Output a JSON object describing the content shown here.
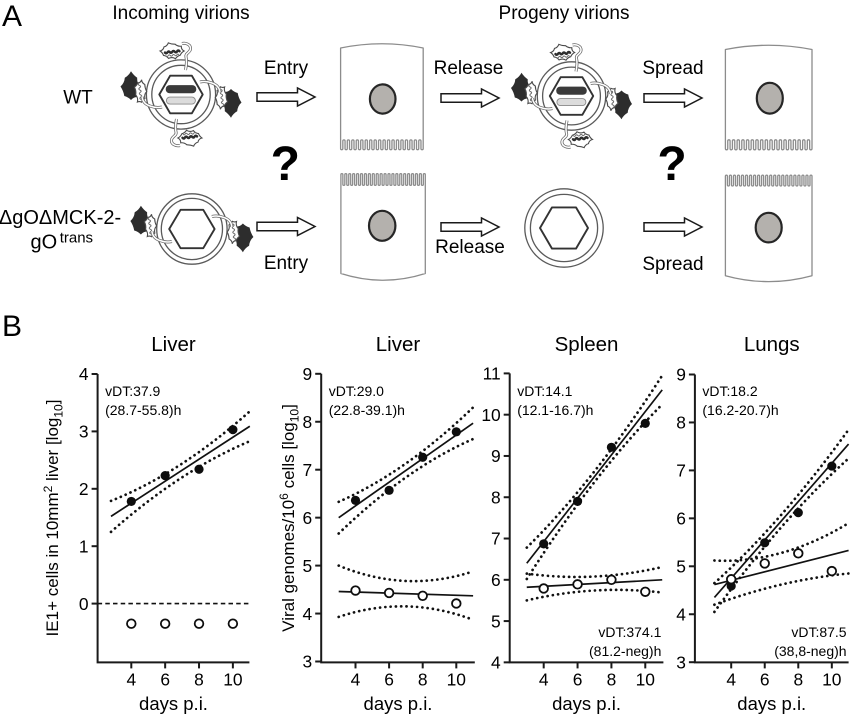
{
  "figure": {
    "panel_a_label": "A",
    "panel_b_label": "B"
  },
  "panel_a": {
    "heading_incoming": "Incoming virions",
    "heading_progeny": "Progeny virions",
    "rows": [
      {
        "label": "WT",
        "entry": "Entry",
        "release": "Release",
        "spread": "Spread"
      },
      {
        "label_line1": "ΔgOΔMCK-2-",
        "label_line2_base": "gO",
        "label_line2_sup": "trans",
        "entry": "Entry",
        "release": "Release",
        "spread": "Spread"
      }
    ],
    "question_marks": [
      "?",
      "?"
    ]
  },
  "colors": {
    "ink": "#000000",
    "axis": "#1a1a1a",
    "membrane_gray": "#8c8c8c",
    "nucleus_fill": "#b4b1ad",
    "virion_outline": "#5a5a5a",
    "capsid_dark_bar": "#3a3a3a",
    "capsid_light_bar": "#dcdcdc",
    "spike_dark": "#2d2d2d"
  },
  "chart_data": [
    {
      "type": "scatter",
      "title": "Liver",
      "xlabel": "days p.i.",
      "ylabel_parts": {
        "t1": "IE1+ cells in 10mm",
        "sup": "2",
        "t2": " liver [log",
        "sub": "10",
        "t3": "]"
      },
      "x_ticks": [
        "4",
        "6",
        "8",
        "10"
      ],
      "y_ticks": [
        "4",
        "3",
        "2",
        "1",
        "0"
      ],
      "xlim": [
        2,
        11
      ],
      "ylim": [
        -1.02,
        4
      ],
      "annotation_top": {
        "line1": "vDT:37.9",
        "line2": "(28.7-55.8)h"
      },
      "annotation_bottom": null,
      "zero_dashed_line": 0,
      "series": [
        {
          "name": "filled-circles",
          "marker": "filled",
          "x": [
            4,
            6,
            8,
            10
          ],
          "y": [
            1.78,
            2.23,
            2.34,
            3.03
          ],
          "fit_line": {
            "x": [
              2.8,
              11
            ],
            "y": [
              1.52,
              3.09
            ]
          },
          "band_upper": [
            [
              2.8,
              1.79
            ],
            [
              6.9,
              2.42
            ],
            [
              11,
              3.35
            ]
          ],
          "band_lower": [
            [
              2.8,
              1.25
            ],
            [
              6.9,
              2.18
            ],
            [
              11,
              2.83
            ]
          ]
        },
        {
          "name": "open-circles",
          "marker": "open",
          "x": [
            4,
            6,
            8,
            10
          ],
          "y": [
            -0.35,
            -0.35,
            -0.35,
            -0.35
          ],
          "fit_line": null,
          "band_upper": null,
          "band_lower": null
        }
      ]
    },
    {
      "type": "scatter",
      "title": "Liver",
      "xlabel": "days p.i.",
      "ylabel_parts": {
        "t1": "Viral genomes/10",
        "sup": "6",
        "t2": " cells [log",
        "sub": "10",
        "t3": "]"
      },
      "x_ticks": [
        "4",
        "6",
        "8",
        "10"
      ],
      "y_ticks": [
        "9",
        "8",
        "7",
        "6",
        "5",
        "4",
        "3"
      ],
      "xlim": [
        2,
        11
      ],
      "ylim": [
        3,
        9
      ],
      "annotation_top": {
        "line1": "vDT:29.0",
        "line2": "(22.8-39.1)h"
      },
      "annotation_bottom": null,
      "zero_dashed_line": null,
      "series": [
        {
          "name": "filled-circles",
          "marker": "filled",
          "x": [
            4,
            6,
            8,
            10
          ],
          "y": [
            6.36,
            6.57,
            7.26,
            7.79
          ],
          "fit_line": {
            "x": [
              3,
              11
            ],
            "y": [
              6.0,
              7.97
            ]
          },
          "band_upper": [
            [
              3,
              6.33
            ],
            [
              7,
              7.13
            ],
            [
              11,
              8.3
            ]
          ],
          "band_lower": [
            [
              3,
              5.67
            ],
            [
              7,
              6.84
            ],
            [
              11,
              7.64
            ]
          ]
        },
        {
          "name": "open-circles",
          "marker": "open",
          "x": [
            4,
            6,
            8,
            10
          ],
          "y": [
            4.48,
            4.43,
            4.37,
            4.21
          ],
          "fit_line": {
            "x": [
              3,
              11
            ],
            "y": [
              4.46,
              4.37
            ]
          },
          "band_upper": [
            [
              3,
              5.0
            ],
            [
              7,
              4.68
            ],
            [
              11,
              4.88
            ]
          ],
          "band_lower": [
            [
              3,
              3.93
            ],
            [
              7,
              4.15
            ],
            [
              11,
              3.87
            ]
          ]
        }
      ]
    },
    {
      "type": "scatter",
      "title": "Spleen",
      "xlabel": "days p.i.",
      "ylabel_parts": null,
      "x_ticks": [
        "4",
        "6",
        "8",
        "10"
      ],
      "y_ticks": [
        "11",
        "10",
        "9",
        "8",
        "7",
        "6",
        "5",
        "4"
      ],
      "xlim": [
        2,
        11
      ],
      "ylim": [
        4,
        11
      ],
      "annotation_top": {
        "line1": "vDT:14.1",
        "line2": "(12.1-16.7)h"
      },
      "annotation_bottom": {
        "line1": "vDT:374.1",
        "line2": "(81.2-neg)h"
      },
      "zero_dashed_line": null,
      "series": [
        {
          "name": "filled-circles",
          "marker": "filled",
          "x": [
            4,
            6,
            8,
            10
          ],
          "y": [
            6.87,
            7.9,
            9.21,
            9.79
          ],
          "fit_line": {
            "x": [
              3,
              11
            ],
            "y": [
              6.4,
              10.6
            ]
          },
          "band_upper": [
            [
              3,
              6.78
            ],
            [
              7,
              8.63
            ],
            [
              11,
              10.95
            ]
          ],
          "band_lower": [
            [
              3,
              6.02
            ],
            [
              7,
              8.37
            ],
            [
              11,
              10.25
            ]
          ]
        },
        {
          "name": "open-circles",
          "marker": "open",
          "x": [
            4,
            6,
            8,
            10
          ],
          "y": [
            5.79,
            5.89,
            6.0,
            5.71
          ],
          "fit_line": {
            "x": [
              3,
              11
            ],
            "y": [
              5.82,
              6.0
            ]
          },
          "band_upper": [
            [
              3,
              6.15
            ],
            [
              7,
              6.08
            ],
            [
              11,
              6.31
            ]
          ],
          "band_lower": [
            [
              3,
              5.5
            ],
            [
              7,
              5.74
            ],
            [
              11,
              5.69
            ]
          ]
        }
      ]
    },
    {
      "type": "scatter",
      "title": "Lungs",
      "xlabel": "days p.i.",
      "ylabel_parts": null,
      "x_ticks": [
        "4",
        "6",
        "8",
        "10"
      ],
      "y_ticks": [
        "9",
        "8",
        "7",
        "6",
        "5",
        "4",
        "3"
      ],
      "xlim": [
        2,
        11
      ],
      "ylim": [
        3,
        9
      ],
      "annotation_top": {
        "line1": "vDT:18.2",
        "line2": "(16.2-20.7)h"
      },
      "annotation_bottom": {
        "line1": "vDT:87.5",
        "line2": "(38,8-neg)h"
      },
      "zero_dashed_line": null,
      "series": [
        {
          "name": "filled-circles",
          "marker": "filled",
          "x": [
            4,
            6,
            8,
            10
          ],
          "y": [
            4.59,
            5.49,
            6.12,
            7.09
          ],
          "fit_line": {
            "x": [
              3,
              11
            ],
            "y": [
              4.35,
              7.55
            ]
          },
          "band_upper": [
            [
              3,
              4.65
            ],
            [
              7,
              6.08
            ],
            [
              11,
              7.85
            ]
          ],
          "band_lower": [
            [
              3,
              4.05
            ],
            [
              7,
              5.82
            ],
            [
              11,
              7.25
            ]
          ]
        },
        {
          "name": "open-circles",
          "marker": "open",
          "x": [
            4,
            6,
            8,
            10
          ],
          "y": [
            4.73,
            5.06,
            5.27,
            4.9
          ],
          "fit_line": {
            "x": [
              3,
              11
            ],
            "y": [
              4.62,
              5.33
            ]
          },
          "band_upper": [
            [
              3,
              5.12
            ],
            [
              7,
              5.28
            ],
            [
              11,
              5.9
            ]
          ],
          "band_lower": [
            [
              3,
              4.2
            ],
            [
              7,
              4.62
            ],
            [
              11,
              4.85
            ]
          ]
        }
      ]
    }
  ]
}
